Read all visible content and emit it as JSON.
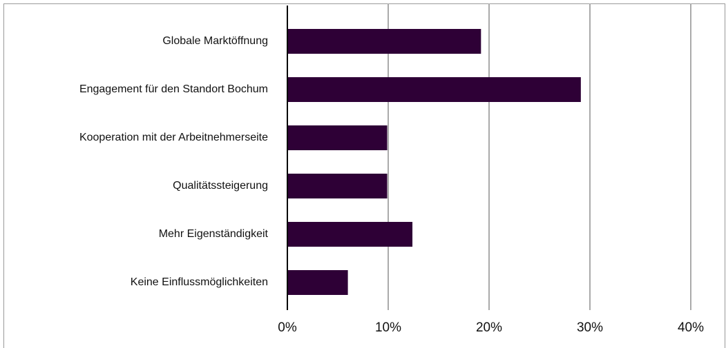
{
  "chart_data": {
    "type": "hbar",
    "categories": [
      "Globale Marktöffnung",
      "Engagement für den Standort Bochum",
      "Kooperation mit der Arbeitnehmerseite",
      "Qualitätssteigerung",
      "Mehr Eigenständigkeit",
      "Keine Einflussmöglichkeiten"
    ],
    "values": [
      19.2,
      29.1,
      9.9,
      9.9,
      12.4,
      6.0
    ],
    "color": "#2e0036",
    "xlim": [
      0,
      40
    ],
    "xticks": [
      {
        "value": 0,
        "label": "0%"
      },
      {
        "value": 10,
        "label": "10%"
      },
      {
        "value": 20,
        "label": "20%"
      },
      {
        "value": 30,
        "label": "30%"
      },
      {
        "value": 40,
        "label": "40%"
      }
    ],
    "grid": true
  }
}
